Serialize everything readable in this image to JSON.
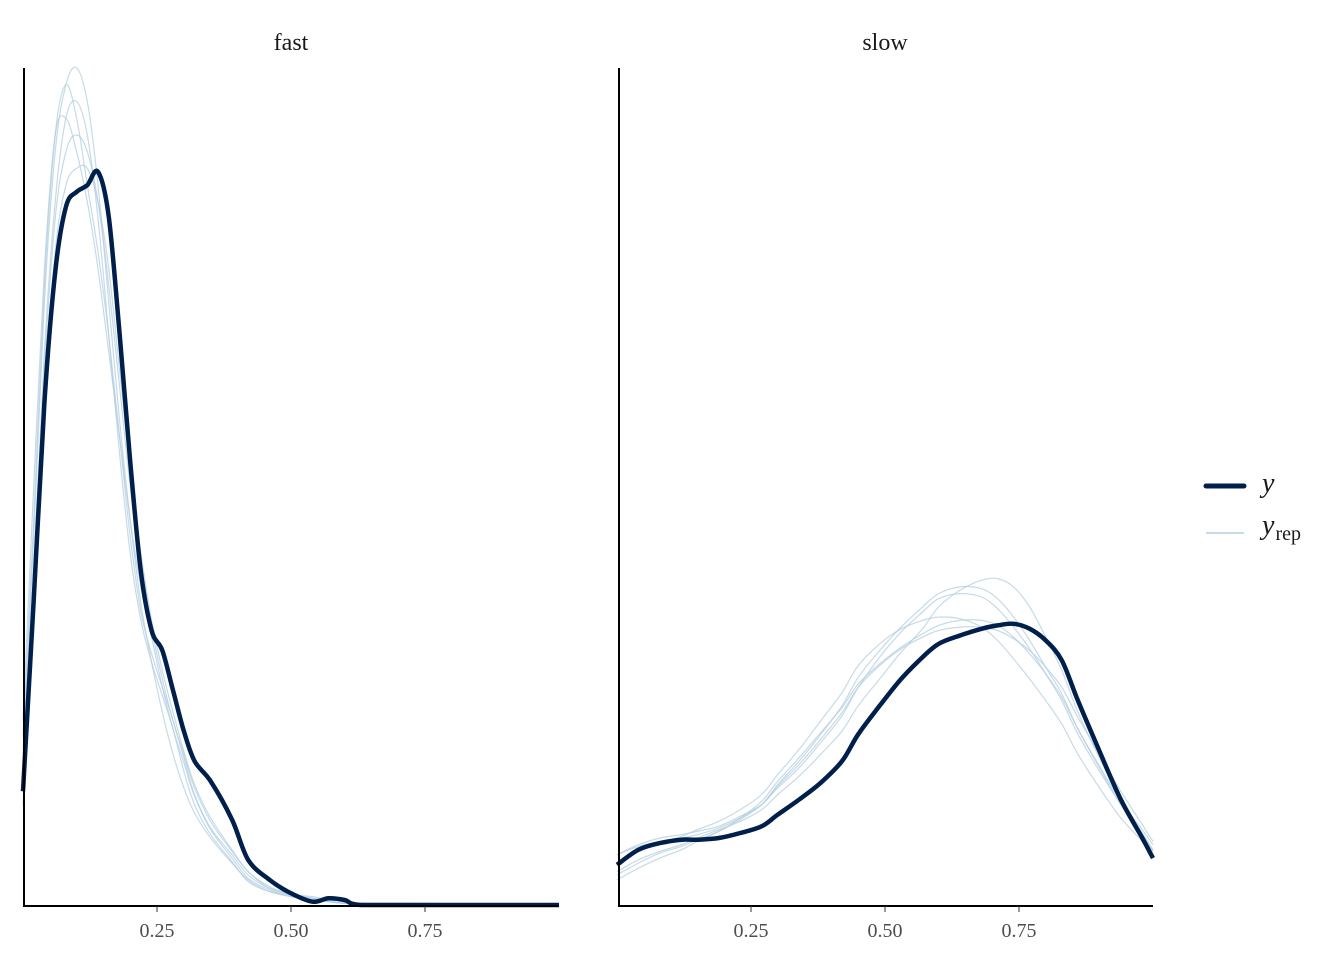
{
  "chart_data": {
    "type": "line",
    "subtype": "density-overlay-faceted",
    "colors": {
      "y": "#011f4b",
      "yrep": "#b3cde0"
    },
    "legend": {
      "placement": "right",
      "entries": [
        {
          "key": "y",
          "label": "y",
          "subscript": ""
        },
        {
          "key": "yrep",
          "label": "y",
          "subscript": "rep"
        }
      ]
    },
    "grid": false,
    "ylim": [
      0,
      5.0
    ],
    "y_axis_shown": false,
    "panels": [
      {
        "title": "fast",
        "xlim": [
          0,
          1
        ],
        "xticks": [
          0.25,
          0.5,
          0.75
        ],
        "xtick_labels": [
          "0.25",
          "0.50",
          "0.75"
        ],
        "x": [
          0.0,
          0.02,
          0.04,
          0.06,
          0.08,
          0.1,
          0.12,
          0.14,
          0.16,
          0.18,
          0.2,
          0.22,
          0.24,
          0.26,
          0.28,
          0.3,
          0.32,
          0.35,
          0.39,
          0.42,
          0.46,
          0.5,
          0.54,
          0.57,
          0.6,
          0.63,
          0.75,
          1.0
        ],
        "y": [
          0.68,
          1.82,
          3.0,
          3.78,
          4.17,
          4.26,
          4.3,
          4.38,
          4.11,
          3.42,
          2.65,
          1.99,
          1.64,
          1.52,
          1.28,
          1.04,
          0.86,
          0.74,
          0.51,
          0.27,
          0.15,
          0.07,
          0.02,
          0.04,
          0.03,
          0.0,
          0.0,
          0.0
        ],
        "yrep": [
          [
            0.9,
            2.2,
            3.6,
            4.5,
            4.9,
            5.0,
            4.8,
            4.3,
            3.6,
            2.9,
            2.3,
            1.8,
            1.45,
            1.15,
            0.9,
            0.7,
            0.55,
            0.4,
            0.25,
            0.15,
            0.08,
            0.05,
            0.03,
            0.02,
            0.01,
            0.01,
            0,
            0
          ],
          [
            0.7,
            1.9,
            3.2,
            4.1,
            4.5,
            4.6,
            4.5,
            4.2,
            3.7,
            3.1,
            2.5,
            2.0,
            1.65,
            1.35,
            1.1,
            0.9,
            0.7,
            0.5,
            0.32,
            0.2,
            0.1,
            0.06,
            0.04,
            0.03,
            0.02,
            0.01,
            0,
            0
          ],
          [
            1.1,
            2.5,
            3.8,
            4.6,
            4.7,
            4.5,
            4.2,
            3.8,
            3.3,
            2.8,
            2.3,
            1.9,
            1.6,
            1.3,
            1.05,
            0.85,
            0.65,
            0.45,
            0.28,
            0.16,
            0.09,
            0.05,
            0.04,
            0.02,
            0.01,
            0.01,
            0.01,
            0
          ],
          [
            0.8,
            2.0,
            3.3,
            4.2,
            4.7,
            4.8,
            4.6,
            4.1,
            3.4,
            2.7,
            2.1,
            1.7,
            1.45,
            1.25,
            1.05,
            0.8,
            0.6,
            0.42,
            0.26,
            0.14,
            0.08,
            0.06,
            0.05,
            0.03,
            0.02,
            0.01,
            0,
            0
          ],
          [
            0.6,
            1.8,
            3.0,
            3.9,
            4.3,
            4.4,
            4.4,
            4.2,
            3.8,
            3.2,
            2.6,
            2.1,
            1.7,
            1.4,
            1.15,
            0.92,
            0.72,
            0.52,
            0.33,
            0.2,
            0.11,
            0.06,
            0.03,
            0.02,
            0.01,
            0.01,
            0,
            0
          ],
          [
            1.0,
            2.3,
            3.7,
            4.6,
            4.9,
            4.7,
            4.3,
            3.9,
            3.4,
            2.8,
            2.2,
            1.75,
            1.5,
            1.3,
            1.1,
            0.88,
            0.66,
            0.46,
            0.3,
            0.18,
            0.1,
            0.07,
            0.04,
            0.02,
            0.01,
            0,
            0,
            0
          ]
        ]
      },
      {
        "title": "slow",
        "xlim": [
          0,
          1
        ],
        "xticks": [
          0.25,
          0.5,
          0.75
        ],
        "xtick_labels": [
          "0.25",
          "0.50",
          "0.75"
        ],
        "x": [
          0.0,
          0.04,
          0.08,
          0.12,
          0.15,
          0.19,
          0.23,
          0.27,
          0.3,
          0.34,
          0.38,
          0.42,
          0.45,
          0.49,
          0.53,
          0.57,
          0.6,
          0.64,
          0.68,
          0.71,
          0.74,
          0.77,
          0.8,
          0.83,
          0.86,
          0.9,
          0.94,
          0.98,
          1.0
        ],
        "y": [
          0.24,
          0.33,
          0.37,
          0.39,
          0.39,
          0.4,
          0.43,
          0.47,
          0.54,
          0.63,
          0.73,
          0.86,
          1.02,
          1.19,
          1.35,
          1.48,
          1.56,
          1.61,
          1.65,
          1.67,
          1.68,
          1.65,
          1.58,
          1.46,
          1.22,
          0.92,
          0.63,
          0.4,
          0.28
        ],
        "yrep": [
          [
            0.3,
            0.36,
            0.4,
            0.42,
            0.44,
            0.47,
            0.53,
            0.6,
            0.7,
            0.82,
            0.97,
            1.13,
            1.3,
            1.48,
            1.63,
            1.75,
            1.83,
            1.86,
            1.84,
            1.77,
            1.66,
            1.53,
            1.38,
            1.22,
            1.02,
            0.8,
            0.6,
            0.42,
            0.32
          ],
          [
            0.15,
            0.22,
            0.28,
            0.33,
            0.38,
            0.44,
            0.52,
            0.62,
            0.74,
            0.88,
            1.03,
            1.18,
            1.32,
            1.44,
            1.54,
            1.62,
            1.67,
            1.7,
            1.7,
            1.67,
            1.6,
            1.5,
            1.38,
            1.24,
            1.05,
            0.83,
            0.62,
            0.45,
            0.36
          ],
          [
            0.25,
            0.32,
            0.37,
            0.41,
            0.45,
            0.5,
            0.57,
            0.66,
            0.78,
            0.93,
            1.1,
            1.27,
            1.43,
            1.56,
            1.65,
            1.7,
            1.72,
            1.71,
            1.66,
            1.58,
            1.47,
            1.35,
            1.22,
            1.08,
            0.9,
            0.7,
            0.52,
            0.38,
            0.3
          ],
          [
            0.2,
            0.27,
            0.32,
            0.36,
            0.4,
            0.45,
            0.5,
            0.57,
            0.66,
            0.77,
            0.9,
            1.04,
            1.19,
            1.35,
            1.51,
            1.65,
            1.78,
            1.88,
            1.94,
            1.95,
            1.9,
            1.78,
            1.6,
            1.4,
            1.15,
            0.88,
            0.63,
            0.43,
            0.33
          ],
          [
            0.3,
            0.35,
            0.38,
            0.4,
            0.42,
            0.46,
            0.52,
            0.6,
            0.71,
            0.84,
            0.99,
            1.15,
            1.3,
            1.43,
            1.53,
            1.6,
            1.64,
            1.66,
            1.66,
            1.64,
            1.59,
            1.52,
            1.42,
            1.3,
            1.12,
            0.9,
            0.68,
            0.48,
            0.38
          ],
          [
            0.18,
            0.25,
            0.31,
            0.35,
            0.39,
            0.44,
            0.51,
            0.6,
            0.72,
            0.86,
            1.02,
            1.19,
            1.36,
            1.52,
            1.66,
            1.78,
            1.86,
            1.9,
            1.89,
            1.83,
            1.72,
            1.58,
            1.42,
            1.26,
            1.05,
            0.82,
            0.6,
            0.42,
            0.32
          ]
        ]
      }
    ]
  }
}
